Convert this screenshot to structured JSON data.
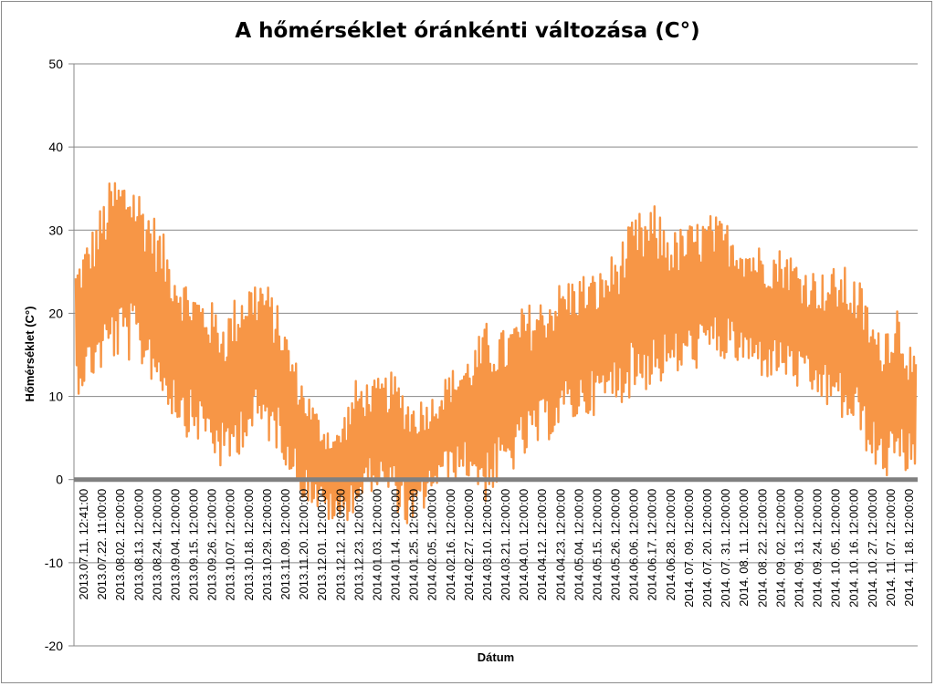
{
  "chart_data": {
    "type": "line",
    "title": "A hőmérséklet óránkénti változása (C°)",
    "xlabel": "Dátum",
    "ylabel": "Hőmérséklet (C°)",
    "ylim": [
      -20,
      50
    ],
    "yticks": [
      -20,
      -10,
      0,
      10,
      20,
      30,
      40,
      50
    ],
    "grid": "horizontal",
    "legend": "none",
    "line_color": "#f79646",
    "zero_line_color": "#808080",
    "categories": [
      "2013.07.11. 12:41:00",
      "2013.07.22. 11:00:00",
      "2013.08.02. 12:00:00",
      "2013.08.13. 12:00:00",
      "2013.08.24. 12:00:00",
      "2013.09.04. 12:00:00",
      "2013.09.15. 12:00:00",
      "2013.09.26. 12:00:00",
      "2013.10.07. 12:00:00",
      "2013.10.18. 12:00:00",
      "2013.10.29. 12:00:00",
      "2013.11.09. 12:00:00",
      "2013.11.20. 12:00:00",
      "2013.12.01. 12:00:00",
      "2013.12.12. 12:00:00",
      "2013.12.23. 12:00:00",
      "2014.01.03. 12:00:00",
      "2014.01.14. 12:00:00",
      "2014.01.25. 12:00:00",
      "2014.02.05. 12:00:00",
      "2014.02.16. 12:00:00",
      "2014.02.27. 12:00:00",
      "2014.03.10. 12:00:00",
      "2014.03.21. 12:00:00",
      "2014.04.01. 12:00:00",
      "2014.04.12. 12:00:00",
      "2014.04.23. 12:00:00",
      "2014.05.04. 12:00:00",
      "2014.05.15. 12:00:00",
      "2014.05.26. 12:00:00",
      "2014.06.06. 12:00:00",
      "2014.06.17. 12:00:00",
      "2014.06.28. 12:00:00",
      "2014. 07. 09. 12:00:00",
      "2014. 07. 20. 12:00:00",
      "2014. 07. 31. 12:00:00",
      "2014. 08. 11. 12:00:00",
      "2014. 08. 22. 12:00:00",
      "2014. 09. 02. 12:00:00",
      "2014. 09. 13. 12:00:00",
      "2014. 09. 24. 12:00:00",
      "2014. 10. 05. 12:00:00",
      "2014. 10. 16. 12:00:00",
      "2014. 10. 27. 12:00:00",
      "2014. 11. 07. 12:00:00",
      "2014. 11. 18. 12:00:00"
    ],
    "series": [
      {
        "low": [
          10,
          12,
          14,
          14,
          12,
          8,
          5,
          4,
          0,
          4,
          5,
          3,
          -2,
          -4,
          -6,
          -4,
          -1,
          -3,
          -7,
          -2,
          0,
          0,
          -3,
          0,
          2,
          4,
          6,
          7,
          8,
          9,
          10,
          11,
          12,
          13,
          14,
          14,
          13,
          12,
          12,
          10,
          9,
          7,
          5,
          0,
          0,
          1
        ],
        "high": [
          26,
          31,
          37,
          37,
          33,
          28,
          24,
          22,
          20,
          24,
          25,
          20,
          13,
          8,
          6,
          12,
          12,
          13,
          10,
          10,
          13,
          15,
          19,
          18,
          21,
          22,
          24,
          25,
          25,
          28,
          32,
          33,
          30,
          31,
          32,
          31,
          29,
          28,
          28,
          26,
          25,
          26,
          24,
          18,
          22,
          14
        ]
      }
    ]
  }
}
